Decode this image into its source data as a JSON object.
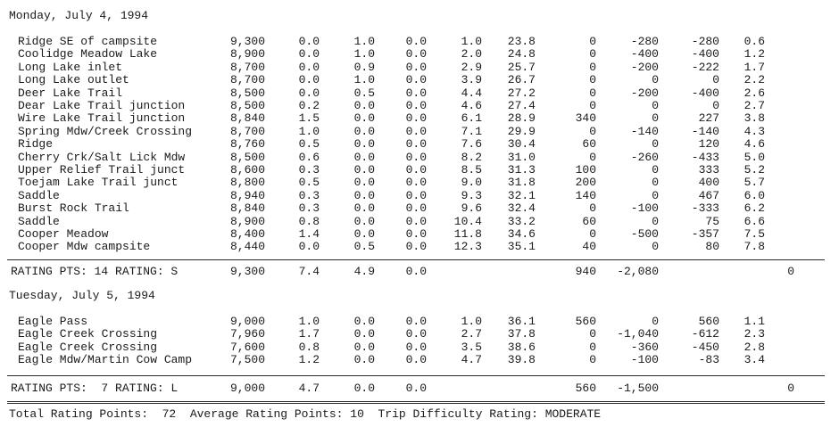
{
  "days": [
    {
      "date": "Monday, July 4, 1994",
      "rows": [
        [
          "Ridge SE of campsite",
          "9,300",
          "0.0",
          "1.0",
          "0.0",
          "1.0",
          "23.8",
          "0",
          "-280",
          "-280",
          "0.6"
        ],
        [
          "Coolidge Meadow Lake",
          "8,900",
          "0.0",
          "1.0",
          "0.0",
          "2.0",
          "24.8",
          "0",
          "-400",
          "-400",
          "1.2"
        ],
        [
          "Long Lake inlet",
          "8,700",
          "0.0",
          "0.9",
          "0.0",
          "2.9",
          "25.7",
          "0",
          "-200",
          "-222",
          "1.7"
        ],
        [
          "Long Lake outlet",
          "8,700",
          "0.0",
          "1.0",
          "0.0",
          "3.9",
          "26.7",
          "0",
          "0",
          "0",
          "2.2"
        ],
        [
          "Deer Lake Trail",
          "8,500",
          "0.0",
          "0.5",
          "0.0",
          "4.4",
          "27.2",
          "0",
          "-200",
          "-400",
          "2.6"
        ],
        [
          "Dear Lake Trail junction",
          "8,500",
          "0.2",
          "0.0",
          "0.0",
          "4.6",
          "27.4",
          "0",
          "0",
          "0",
          "2.7"
        ],
        [
          "Wire Lake Trail junction",
          "8,840",
          "1.5",
          "0.0",
          "0.0",
          "6.1",
          "28.9",
          "340",
          "0",
          "227",
          "3.8"
        ],
        [
          "Spring Mdw/Creek Crossing",
          "8,700",
          "1.0",
          "0.0",
          "0.0",
          "7.1",
          "29.9",
          "0",
          "-140",
          "-140",
          "4.3"
        ],
        [
          "Ridge",
          "8,760",
          "0.5",
          "0.0",
          "0.0",
          "7.6",
          "30.4",
          "60",
          "0",
          "120",
          "4.6"
        ],
        [
          "Cherry Crk/Salt Lick Mdw",
          "8,500",
          "0.6",
          "0.0",
          "0.0",
          "8.2",
          "31.0",
          "0",
          "-260",
          "-433",
          "5.0"
        ],
        [
          "Upper Relief Trail junct",
          "8,600",
          "0.3",
          "0.0",
          "0.0",
          "8.5",
          "31.3",
          "100",
          "0",
          "333",
          "5.2"
        ],
        [
          "Toejam Lake Trail junct",
          "8,800",
          "0.5",
          "0.0",
          "0.0",
          "9.0",
          "31.8",
          "200",
          "0",
          "400",
          "5.7"
        ],
        [
          "Saddle",
          "8,940",
          "0.3",
          "0.0",
          "0.0",
          "9.3",
          "32.1",
          "140",
          "0",
          "467",
          "6.0"
        ],
        [
          "Burst Rock Trail",
          "8,840",
          "0.3",
          "0.0",
          "0.0",
          "9.6",
          "32.4",
          "0",
          "-100",
          "-333",
          "6.2"
        ],
        [
          "Saddle",
          "8,900",
          "0.8",
          "0.0",
          "0.0",
          "10.4",
          "33.2",
          "60",
          "0",
          "75",
          "6.6"
        ],
        [
          "Cooper Meadow",
          "8,400",
          "1.4",
          "0.0",
          "0.0",
          "11.8",
          "34.6",
          "0",
          "-500",
          "-357",
          "7.5"
        ],
        [
          "Cooper Mdw campsite",
          "8,440",
          "0.0",
          "0.5",
          "0.0",
          "12.3",
          "35.1",
          "40",
          "0",
          "80",
          "7.8"
        ]
      ],
      "total": [
        "RATING PTS: 14 RATING: S",
        "9,300",
        "7.4",
        "4.9",
        "0.0",
        "",
        "",
        "940",
        "-2,080",
        "",
        "",
        "0"
      ]
    },
    {
      "date": "Tuesday, July 5, 1994",
      "rows": [
        [
          "Eagle Pass",
          "9,000",
          "1.0",
          "0.0",
          "0.0",
          "1.0",
          "36.1",
          "560",
          "0",
          "560",
          "1.1"
        ],
        [
          "Eagle Creek Crossing",
          "7,960",
          "1.7",
          "0.0",
          "0.0",
          "2.7",
          "37.8",
          "0",
          "-1,040",
          "-612",
          "2.3"
        ],
        [
          "Eagle Creek Crossing",
          "7,600",
          "0.8",
          "0.0",
          "0.0",
          "3.5",
          "38.6",
          "0",
          "-360",
          "-450",
          "2.8"
        ],
        [
          "Eagle Mdw/Martin Cow Camp",
          "7,500",
          "1.2",
          "0.0",
          "0.0",
          "4.7",
          "39.8",
          "0",
          "-100",
          "-83",
          "3.4"
        ]
      ],
      "total": [
        "RATING PTS:  7 RATING: L",
        "9,000",
        "4.7",
        "0.0",
        "0.0",
        "",
        "",
        "560",
        "-1,500",
        "",
        "",
        "0"
      ]
    }
  ],
  "summary": "Total Rating Points:  72  Average Rating Points: 10  Trip Difficulty Rating: MODERATE"
}
